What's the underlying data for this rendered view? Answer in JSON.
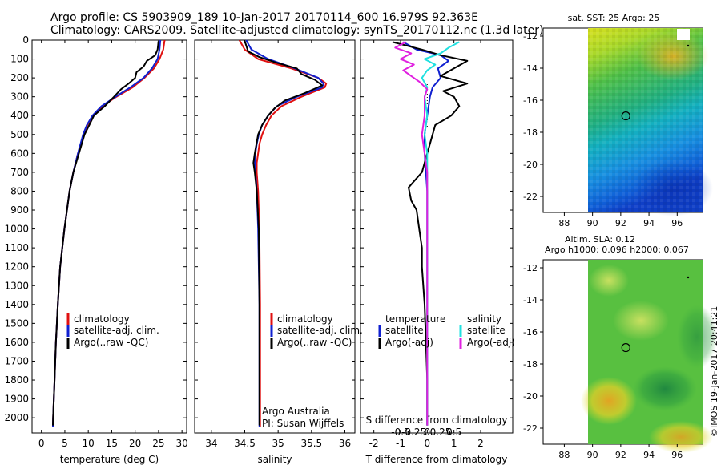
{
  "header": {
    "line1": "Argo profile: CS 5903909_189 10-Jan-2017 20170114_600 16.979S 92.363E",
    "line2": "Climatology: CARS2009. Satellite-adjusted climatology: synTS_20170112.nc (1.3d later)"
  },
  "credit": "©IMOS 19-Jan-2017 20:41:21",
  "colors": {
    "clim": "#e01010",
    "sat": "#1020d0",
    "argo": "#000000",
    "sat_s": "#20e0e0",
    "argo_s": "#e020e0"
  },
  "legend": {
    "clim": "climatology",
    "sat": "satellite-adj. clim.",
    "argo": "Argo(..raw -QC)"
  },
  "legend_diff": {
    "t_head": "temperature",
    "s_head": "salinity",
    "t_sat": "satellite",
    "t_argo": "Argo(-adj)",
    "s_sat": "satellite",
    "s_argo": "Argo(-adj)"
  },
  "credits_panel": {
    "line1": "Argo Australia",
    "line2": "PI: Susan Wijffels"
  },
  "chart_data": [
    {
      "type": "line",
      "title": "",
      "xlabel": "temperature (deg C)",
      "ylabel": "",
      "xlim": [
        -2,
        31
      ],
      "ylim": [
        2080,
        0
      ],
      "xticks": [
        0,
        5,
        10,
        15,
        20,
        25,
        30
      ],
      "yticks": [
        0,
        100,
        200,
        300,
        400,
        500,
        600,
        700,
        800,
        900,
        1000,
        1100,
        1200,
        1300,
        1400,
        1500,
        1600,
        1700,
        1800,
        1900,
        2000
      ],
      "series": [
        {
          "name": "climatology",
          "color": "clim",
          "y": [
            0,
            50,
            100,
            150,
            200,
            250,
            300,
            350,
            400,
            450,
            500,
            600,
            700,
            800,
            1000,
            1200,
            1400,
            1600,
            1800,
            2000,
            2050
          ],
          "x": [
            26.3,
            26.0,
            25.2,
            24.0,
            22.0,
            19.5,
            16.0,
            13.0,
            11.0,
            9.8,
            9.0,
            7.8,
            6.8,
            6.0,
            4.9,
            4.0,
            3.5,
            3.1,
            2.8,
            2.5,
            2.45
          ]
        },
        {
          "name": "satellite-adj. clim.",
          "color": "sat",
          "y": [
            0,
            50,
            100,
            150,
            200,
            250,
            300,
            350,
            400,
            450,
            500,
            600,
            700,
            800,
            1000,
            1200,
            1400,
            1600,
            1800,
            2000,
            2050
          ],
          "x": [
            25.4,
            25.2,
            24.8,
            23.6,
            21.8,
            19.0,
            15.8,
            12.8,
            10.9,
            9.7,
            8.9,
            7.8,
            6.8,
            6.0,
            4.9,
            4.0,
            3.5,
            3.1,
            2.8,
            2.5,
            2.45
          ]
        },
        {
          "name": "Argo(..raw -QC)",
          "color": "argo",
          "y": [
            5,
            50,
            80,
            110,
            140,
            170,
            200,
            230,
            260,
            300,
            350,
            400,
            450,
            500,
            600,
            700,
            800,
            1000,
            1200,
            1400,
            1600,
            1800,
            2000,
            2040
          ],
          "x": [
            25.0,
            24.8,
            24.3,
            22.5,
            21.8,
            20.3,
            20.0,
            18.6,
            17.0,
            15.5,
            13.5,
            11.2,
            10.2,
            9.2,
            8.0,
            6.8,
            6.0,
            4.9,
            4.0,
            3.5,
            3.1,
            2.8,
            2.5,
            2.45
          ]
        }
      ]
    },
    {
      "type": "line",
      "xlabel": "salinity",
      "xlim": [
        33.75,
        36.15
      ],
      "ylim": [
        2080,
        0
      ],
      "xticks": [
        34,
        34.5,
        35,
        35.5,
        36
      ],
      "series": [
        {
          "name": "climatology",
          "color": "clim",
          "y": [
            0,
            50,
            100,
            150,
            200,
            230,
            250,
            300,
            350,
            400,
            450,
            500,
            550,
            600,
            650,
            700,
            800,
            1000,
            1400,
            2050
          ],
          "x": [
            34.42,
            34.5,
            34.7,
            35.2,
            35.6,
            35.72,
            35.7,
            35.35,
            35.05,
            34.9,
            34.82,
            34.76,
            34.72,
            34.7,
            34.68,
            34.68,
            34.7,
            34.72,
            34.73,
            34.73
          ]
        },
        {
          "name": "satellite-adj. clim.",
          "color": "sat",
          "y": [
            0,
            50,
            100,
            150,
            200,
            230,
            250,
            300,
            350,
            400,
            450,
            500,
            550,
            600,
            650,
            700,
            800,
            1000,
            1400,
            2050
          ],
          "x": [
            34.52,
            34.6,
            34.85,
            35.25,
            35.6,
            35.68,
            35.66,
            35.28,
            34.98,
            34.85,
            34.76,
            34.71,
            34.68,
            34.66,
            34.65,
            34.66,
            34.68,
            34.7,
            34.72,
            34.72
          ]
        },
        {
          "name": "Argo(..raw -QC)",
          "color": "argo",
          "y": [
            5,
            60,
            90,
            120,
            150,
            180,
            210,
            240,
            280,
            320,
            360,
            400,
            450,
            500,
            600,
            650,
            700,
            800,
            1000,
            1400,
            2040
          ],
          "x": [
            34.5,
            34.55,
            34.72,
            34.98,
            35.28,
            35.35,
            35.55,
            35.66,
            35.4,
            35.1,
            34.95,
            34.85,
            34.76,
            34.7,
            34.65,
            34.63,
            34.65,
            34.68,
            34.71,
            34.72,
            34.72
          ]
        }
      ]
    },
    {
      "type": "line",
      "xlabel": "T difference from climatology",
      "title": "S difference from climatology",
      "xlim": [
        -2.5,
        3.2
      ],
      "ylim": [
        2080,
        0
      ],
      "xticks": [
        -2,
        -1,
        0,
        1,
        2
      ],
      "stick_labels": [
        "-0.5",
        "-0.25",
        "0",
        "0.25",
        "0.5"
      ],
      "series": [
        {
          "name": "T satellite",
          "color": "sat",
          "y": [
            10,
            50,
            80,
            110,
            150,
            200,
            250,
            300,
            400,
            500,
            600,
            700,
            800,
            1000,
            1200,
            1400,
            1600,
            1800,
            2000,
            2040
          ],
          "x": [
            -0.9,
            -0.4,
            0.5,
            0.8,
            0.4,
            0.5,
            0.2,
            0.1,
            0.0,
            -0.1,
            -0.1,
            -0.05,
            0.0,
            0.0,
            0.0,
            0.0,
            0.0,
            0.0,
            0.0,
            0.0
          ]
        },
        {
          "name": "T Argo(-adj)",
          "color": "argo",
          "y": [
            10,
            50,
            80,
            110,
            150,
            190,
            230,
            270,
            300,
            350,
            400,
            450,
            500,
            600,
            700,
            780,
            850,
            900,
            1000,
            1100,
            1200,
            1400,
            1600,
            1800,
            2000,
            2040
          ],
          "x": [
            -1.3,
            -0.2,
            0.5,
            1.5,
            1.0,
            0.5,
            1.5,
            0.6,
            1.0,
            1.2,
            0.9,
            0.3,
            0.2,
            0.0,
            -0.2,
            -0.7,
            -0.6,
            -0.4,
            -0.3,
            -0.2,
            -0.2,
            -0.1,
            -0.05,
            0.0,
            0.0,
            0.0
          ]
        },
        {
          "name": "S satellite",
          "color": "sat_s",
          "y": [
            10,
            40,
            70,
            100,
            130,
            160,
            200,
            250,
            300,
            400,
            500,
            600,
            700,
            800,
            1000,
            1400,
            2040
          ],
          "x": [
            1.2,
            0.8,
            0.5,
            -0.1,
            0.3,
            0.0,
            -0.2,
            0.0,
            -0.1,
            0.0,
            -0.1,
            0.0,
            0.0,
            0.0,
            0.0,
            0.0,
            0.0
          ]
        },
        {
          "name": "S Argo(-adj)",
          "color": "argo_s",
          "y": [
            10,
            40,
            70,
            100,
            130,
            160,
            190,
            220,
            260,
            300,
            400,
            500,
            600,
            700,
            800,
            1000,
            1400,
            2040
          ],
          "x": [
            -0.8,
            -1.2,
            -0.6,
            -1.0,
            -0.5,
            -0.9,
            -0.6,
            -0.3,
            0.0,
            -0.1,
            -0.1,
            -0.2,
            -0.1,
            0.0,
            0.0,
            0.0,
            0.0,
            0.0
          ]
        }
      ]
    },
    {
      "type": "heatmap",
      "title": "sat. SST: 25 Argo: 25",
      "xlim": [
        86.5,
        97.8
      ],
      "ylim": [
        -23,
        -11.5
      ],
      "xticks": [
        88,
        90,
        92,
        94,
        96
      ],
      "yticks": [
        -12,
        -14,
        -16,
        -18,
        -20,
        -22
      ],
      "profile_location": [
        92.363,
        -16.979
      ]
    },
    {
      "type": "heatmap",
      "title": "Altim. SLA: 0.12",
      "subtitle": "Argo h1000: 0.096 h2000: 0.067",
      "xlim": [
        86.5,
        97.8
      ],
      "ylim": [
        -23,
        -11.5
      ],
      "xticks": [
        88,
        90,
        92,
        94,
        96
      ],
      "yticks": [
        -12,
        -14,
        -16,
        -18,
        -20,
        -22
      ],
      "profile_location": [
        92.363,
        -16.979
      ]
    }
  ]
}
